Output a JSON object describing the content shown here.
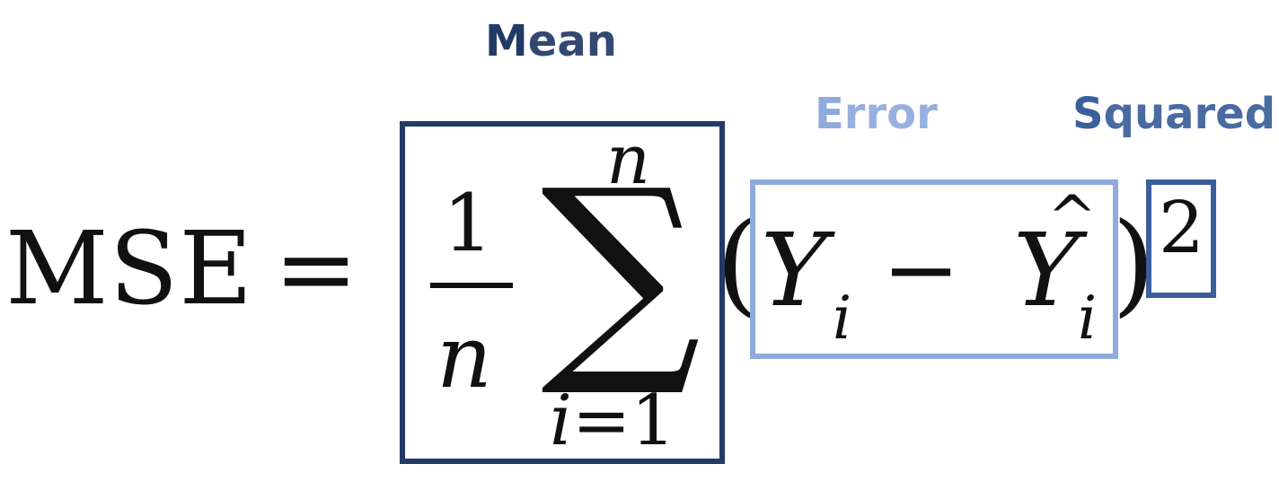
{
  "labels": {
    "mean": {
      "first": "M",
      "rest": "ean",
      "color": "#223a66"
    },
    "error": {
      "first": "E",
      "rest": "rror",
      "color": "#90aadd"
    },
    "squared": {
      "first": "S",
      "rest": "quared",
      "color": "#3a5f9b"
    }
  },
  "formula": {
    "lhs": "MSE",
    "equals": "=",
    "fraction_numerator": "1",
    "fraction_denominator": "n",
    "sum_symbol": "∑",
    "sum_upper": "n",
    "sum_lower_index": "i",
    "sum_lower_equals": "=",
    "sum_lower_value": "1",
    "open_paren": "(",
    "close_paren": ")",
    "term1": "Y",
    "term1_sub": "i",
    "minus": "−",
    "term2": "Y",
    "term2_hat": "^",
    "term2_sub": "i",
    "exponent": "2"
  },
  "colors": {
    "text": "#111111",
    "mean_box": "#223a66",
    "error_box": "#90aadd",
    "squared_box": "#3a5f9b"
  }
}
